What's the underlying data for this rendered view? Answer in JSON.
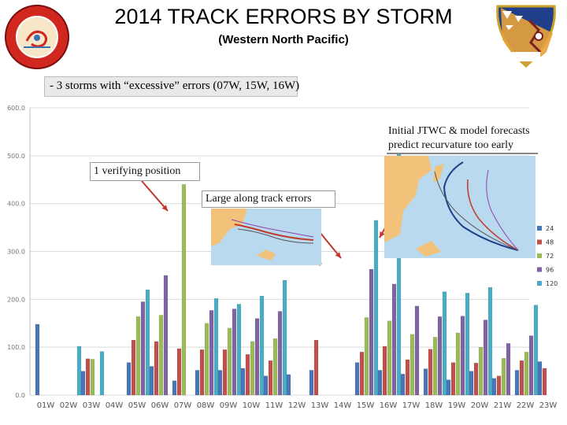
{
  "header": {
    "title": "2014 TRACK ERRORS BY STORM",
    "subtitle": "(Western North Pacific)"
  },
  "logos": {
    "left": {
      "icon": "typhoon-warning-center-seal",
      "color": "#d0281f",
      "text": "JOINT TYPHOON WARNING CENTER PEARL HARBOR HAWAII"
    },
    "right": {
      "icon": "17-ows-patch",
      "color": "#1f3f8a",
      "text": "17 OWS"
    }
  },
  "note": "- 3 storms with “excessive” errors (07W, 15W, 16W)",
  "annotations": {
    "recurvature": "Initial JTWC & model forecasts predict recurvature too early",
    "verifying": "1 verifying position",
    "along_track": "Large along track errors"
  },
  "maps": {
    "map1": {
      "icon": "storm-track-map",
      "ocean": "#b9d9ef",
      "land": "#f2c27a"
    },
    "map2": {
      "icon": "storm-track-map",
      "ocean": "#b9d9ef",
      "land": "#f2c27a"
    }
  },
  "chart_data": {
    "type": "bar",
    "ylim": [
      0,
      600
    ],
    "yticks": [
      "0.0",
      "100.0",
      "200.0",
      "300.0",
      "400.0",
      "500.0",
      "600.0"
    ],
    "grid": true,
    "legend_position": "right",
    "categories": [
      "01W",
      "02W",
      "03W",
      "04W",
      "05W",
      "06W",
      "07W",
      "08W",
      "09W",
      "10W",
      "11W",
      "12W",
      "13W",
      "14W",
      "15W",
      "16W",
      "17W",
      "18W",
      "19W",
      "20W",
      "21W",
      "22W",
      "23W"
    ],
    "series": [
      {
        "name": "24",
        "color": "#4a76b8",
        "values": [
          148,
          0,
          50,
          0,
          68,
          60,
          30,
          52,
          52,
          56,
          40,
          43,
          52,
          0,
          68,
          52,
          44,
          55,
          32,
          50,
          35,
          52,
          70
        ]
      },
      {
        "name": "48",
        "color": "#c0504d",
        "values": [
          0,
          0,
          76,
          0,
          115,
          112,
          97,
          95,
          95,
          85,
          72,
          0,
          115,
          0,
          90,
          102,
          74,
          96,
          68,
          67,
          40,
          72,
          56
        ]
      },
      {
        "name": "72",
        "color": "#9bbb59",
        "values": [
          0,
          0,
          75,
          0,
          164,
          167,
          440,
          150,
          140,
          112,
          118,
          0,
          0,
          0,
          162,
          155,
          127,
          121,
          130,
          100,
          77,
          90,
          0
        ]
      },
      {
        "name": "96",
        "color": "#8064a2",
        "values": [
          0,
          0,
          0,
          0,
          195,
          250,
          0,
          177,
          180,
          160,
          175,
          0,
          0,
          0,
          263,
          232,
          186,
          164,
          165,
          157,
          108,
          124,
          0
        ]
      },
      {
        "name": "120",
        "color": "#4bacc6",
        "values": [
          0,
          102,
          91,
          0,
          220,
          0,
          0,
          202,
          190,
          207,
          240,
          0,
          0,
          0,
          365,
          510,
          0,
          216,
          213,
          225,
          0,
          188,
          0
        ]
      }
    ]
  }
}
